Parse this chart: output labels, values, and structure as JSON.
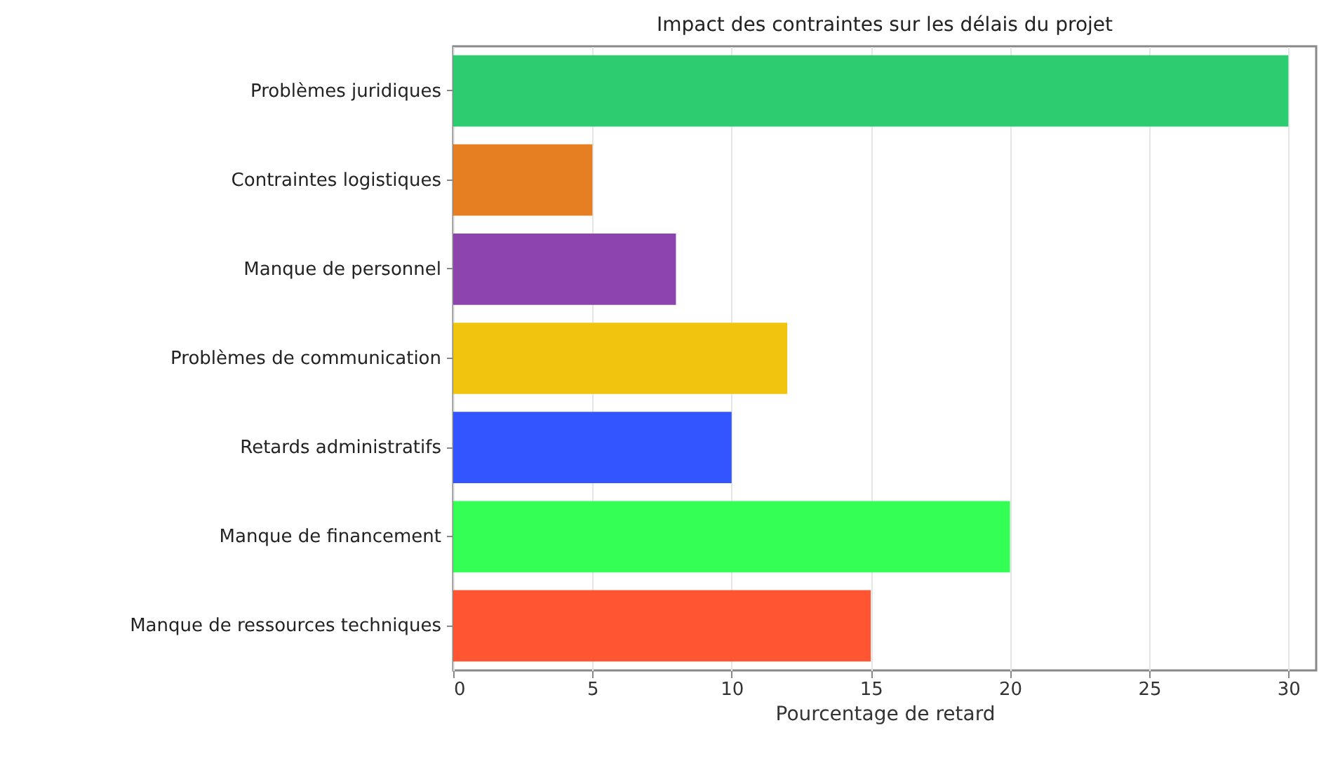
{
  "chart_data": {
    "type": "bar",
    "orientation": "horizontal",
    "title": "Impact des contraintes sur les délais du projet",
    "xlabel": "Pourcentage de retard",
    "categories": [
      "Problèmes juridiques",
      "Contraintes logistiques",
      "Manque de personnel",
      "Problèmes de communication",
      "Retards administratifs",
      "Manque de financement",
      "Manque de ressources techniques"
    ],
    "values": [
      30,
      5,
      8,
      12,
      10,
      20,
      15
    ],
    "colors": [
      "#2ecc71",
      "#e67e22",
      "#8e44ad",
      "#f1c40f",
      "#3355ff",
      "#33ff55",
      "#ff5533"
    ],
    "xlim": [
      0,
      31
    ],
    "xticks": [
      0,
      5,
      10,
      15,
      20,
      25,
      30
    ],
    "grid": "x",
    "legend": false
  }
}
